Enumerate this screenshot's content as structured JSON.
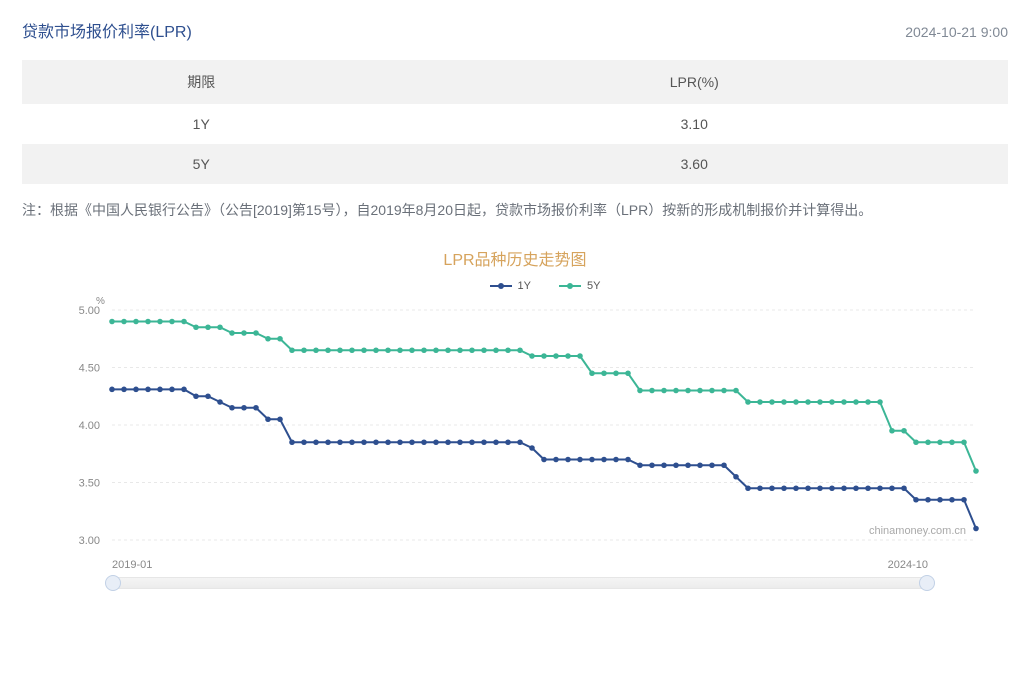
{
  "header": {
    "title": "贷款市场报价利率(LPR)",
    "title_color": "#2e4f8f",
    "timestamp": "2024-10-21 9:00"
  },
  "table": {
    "columns": [
      "期限",
      "LPR(%)"
    ],
    "rows": [
      [
        "1Y",
        "3.10"
      ],
      [
        "5Y",
        "3.60"
      ]
    ],
    "header_bg": "#f2f2f2",
    "alt_row_bg": "#f2f2f2"
  },
  "note": "注：根据《中国人民银行公告》（公告[2019]第15号），自2019年8月20日起，贷款市场报价利率（LPR）按新的形成机制报价并计算得出。",
  "chart": {
    "title": "LPR品种历史走势图",
    "title_color": "#d6a35c",
    "type": "line",
    "y_unit": "%",
    "ylim": [
      3.0,
      5.0
    ],
    "ytick_step": 0.5,
    "yticks": [
      "5.00",
      "4.50",
      "4.00",
      "3.50",
      "3.00"
    ],
    "x_start_label": "2019-01",
    "x_end_label": "2024-10",
    "background_color": "#ffffff",
    "grid_color": "#e8e8e8",
    "axis_font_size": 11,
    "marker_radius": 2.8,
    "line_width": 2,
    "watermark": "chinamoney.com.cn",
    "legend": [
      {
        "name": "1Y",
        "color": "#2e4f8f"
      },
      {
        "name": "5Y",
        "color": "#3cb696"
      }
    ],
    "series": {
      "1Y": [
        4.31,
        4.31,
        4.31,
        4.31,
        4.31,
        4.31,
        4.31,
        4.25,
        4.25,
        4.2,
        4.15,
        4.15,
        4.15,
        4.05,
        4.05,
        3.85,
        3.85,
        3.85,
        3.85,
        3.85,
        3.85,
        3.85,
        3.85,
        3.85,
        3.85,
        3.85,
        3.85,
        3.85,
        3.85,
        3.85,
        3.85,
        3.85,
        3.85,
        3.85,
        3.85,
        3.8,
        3.7,
        3.7,
        3.7,
        3.7,
        3.7,
        3.7,
        3.7,
        3.7,
        3.65,
        3.65,
        3.65,
        3.65,
        3.65,
        3.65,
        3.65,
        3.65,
        3.55,
        3.45,
        3.45,
        3.45,
        3.45,
        3.45,
        3.45,
        3.45,
        3.45,
        3.45,
        3.45,
        3.45,
        3.45,
        3.45,
        3.45,
        3.35,
        3.35,
        3.35,
        3.35,
        3.35,
        3.1
      ],
      "5Y": [
        4.9,
        4.9,
        4.9,
        4.9,
        4.9,
        4.9,
        4.9,
        4.85,
        4.85,
        4.85,
        4.8,
        4.8,
        4.8,
        4.75,
        4.75,
        4.65,
        4.65,
        4.65,
        4.65,
        4.65,
        4.65,
        4.65,
        4.65,
        4.65,
        4.65,
        4.65,
        4.65,
        4.65,
        4.65,
        4.65,
        4.65,
        4.65,
        4.65,
        4.65,
        4.65,
        4.6,
        4.6,
        4.6,
        4.6,
        4.6,
        4.45,
        4.45,
        4.45,
        4.45,
        4.3,
        4.3,
        4.3,
        4.3,
        4.3,
        4.3,
        4.3,
        4.3,
        4.3,
        4.2,
        4.2,
        4.2,
        4.2,
        4.2,
        4.2,
        4.2,
        4.2,
        4.2,
        4.2,
        4.2,
        4.2,
        3.95,
        3.95,
        3.85,
        3.85,
        3.85,
        3.85,
        3.85,
        3.6
      ]
    }
  }
}
